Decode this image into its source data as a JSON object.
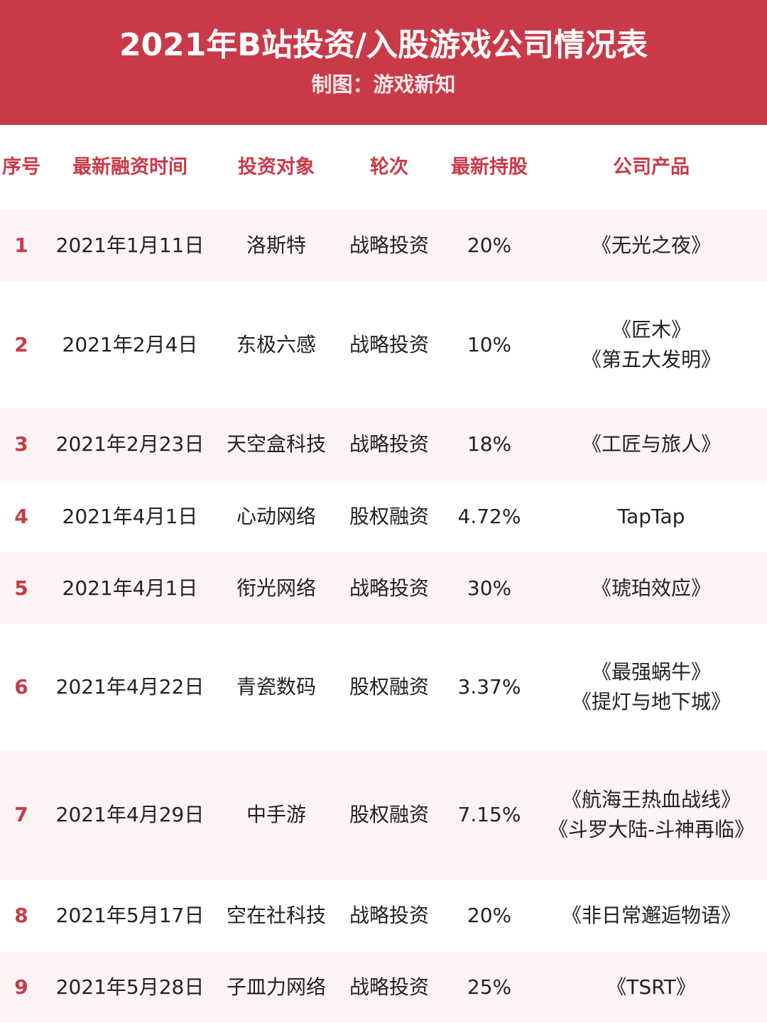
{
  "header": {
    "title": "2021年B站投资/入股游戏公司情况表",
    "subtitle": "制图：游戏新知"
  },
  "columns": [
    "序号",
    "最新融资时间",
    "投资对象",
    "轮次",
    "最新持股",
    "公司产品"
  ],
  "rows": [
    {
      "no": "1",
      "date": "2021年1月11日",
      "target": "洛斯特",
      "round": "战略投资",
      "stake": "20%",
      "products": [
        "《无光之夜》"
      ]
    },
    {
      "no": "2",
      "date": "2021年2月4日",
      "target": "东极六感",
      "round": "战略投资",
      "stake": "10%",
      "products": [
        "《匠木》",
        "《第五大发明》"
      ]
    },
    {
      "no": "3",
      "date": "2021年2月23日",
      "target": "天空盒科技",
      "round": "战略投资",
      "stake": "18%",
      "products": [
        "《工匠与旅人》"
      ]
    },
    {
      "no": "4",
      "date": "2021年4月1日",
      "target": "心动网络",
      "round": "股权融资",
      "stake": "4.72%",
      "products": [
        "TapTap"
      ]
    },
    {
      "no": "5",
      "date": "2021年4月1日",
      "target": "衔光网络",
      "round": "战略投资",
      "stake": "30%",
      "products": [
        "《琥珀效应》"
      ]
    },
    {
      "no": "6",
      "date": "2021年4月22日",
      "target": "青瓷数码",
      "round": "股权融资",
      "stake": "3.37%",
      "products": [
        "《最强蜗牛》",
        "《提灯与地下城》"
      ]
    },
    {
      "no": "7",
      "date": "2021年4月29日",
      "target": "中手游",
      "round": "股权融资",
      "stake": "7.15%",
      "products": [
        "《航海王热血战线》",
        "《斗罗大陆-斗神再临》"
      ]
    },
    {
      "no": "8",
      "date": "2021年5月17日",
      "target": "空在社科技",
      "round": "战略投资",
      "stake": "20%",
      "products": [
        "《非日常邂逅物语》"
      ]
    },
    {
      "no": "9",
      "date": "2021年5月28日",
      "target": "子皿力网络",
      "round": "战略投资",
      "stake": "25%",
      "products": [
        "《TSRT》"
      ]
    }
  ],
  "colors": {
    "accent": "#c93a48",
    "row_alt": "#fcf3f4"
  }
}
